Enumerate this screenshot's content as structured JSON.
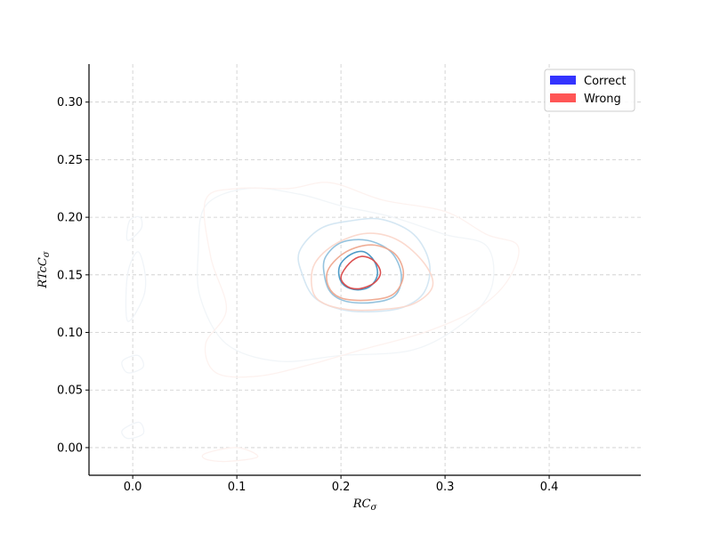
{
  "chart_data": {
    "type": "contour",
    "title": "",
    "xlabel": "RC",
    "xlabel_sub": "σ",
    "ylabel": "RTcC",
    "ylabel_sub": "σ",
    "xlim": [
      -0.042,
      0.488
    ],
    "ylim": [
      -0.024,
      0.333
    ],
    "xticks": [
      0.0,
      0.1,
      0.2,
      0.3,
      0.4
    ],
    "xtick_labels": [
      "0.0",
      "0.1",
      "0.2",
      "0.3",
      "0.4"
    ],
    "yticks": [
      0.0,
      0.05,
      0.1,
      0.15,
      0.2,
      0.25,
      0.3
    ],
    "ytick_labels": [
      "0.00",
      "0.05",
      "0.10",
      "0.15",
      "0.20",
      "0.25",
      "0.30"
    ],
    "grid": true,
    "legend_position": "top-right",
    "series": [
      {
        "name": "Correct",
        "legend_color": "#3333ff",
        "levels": [
          {
            "color": "#f0f4f8",
            "points": [
              [
                0.07,
                0.21
              ],
              [
                0.11,
                0.225
              ],
              [
                0.16,
                0.22
              ],
              [
                0.2,
                0.21
              ],
              [
                0.25,
                0.2
              ],
              [
                0.3,
                0.185
              ],
              [
                0.34,
                0.175
              ],
              [
                0.345,
                0.14
              ],
              [
                0.32,
                0.11
              ],
              [
                0.27,
                0.085
              ],
              [
                0.2,
                0.08
              ],
              [
                0.14,
                0.075
              ],
              [
                0.09,
                0.09
              ],
              [
                0.065,
                0.13
              ],
              [
                0.063,
                0.17
              ]
            ]
          },
          {
            "color": "#d3e6f2",
            "points": [
              [
                0.16,
                0.17
              ],
              [
                0.18,
                0.19
              ],
              [
                0.21,
                0.197
              ],
              [
                0.24,
                0.198
              ],
              [
                0.27,
                0.185
              ],
              [
                0.285,
                0.16
              ],
              [
                0.28,
                0.135
              ],
              [
                0.26,
                0.122
              ],
              [
                0.23,
                0.118
              ],
              [
                0.2,
                0.12
              ],
              [
                0.175,
                0.13
              ],
              [
                0.163,
                0.15
              ]
            ]
          },
          {
            "color": "#8fc0dc",
            "points": [
              [
                0.185,
                0.165
              ],
              [
                0.2,
                0.178
              ],
              [
                0.225,
                0.18
              ],
              [
                0.248,
                0.17
              ],
              [
                0.258,
                0.15
              ],
              [
                0.252,
                0.132
              ],
              [
                0.23,
                0.126
              ],
              [
                0.205,
                0.127
              ],
              [
                0.19,
                0.135
              ],
              [
                0.184,
                0.15
              ]
            ]
          },
          {
            "color": "#4596c4",
            "points": [
              [
                0.2,
                0.16
              ],
              [
                0.21,
                0.168
              ],
              [
                0.222,
                0.17
              ],
              [
                0.232,
                0.162
              ],
              [
                0.235,
                0.15
              ],
              [
                0.228,
                0.14
              ],
              [
                0.215,
                0.137
              ],
              [
                0.203,
                0.141
              ],
              [
                0.198,
                0.15
              ]
            ]
          }
        ]
      },
      {
        "name": "Wrong",
        "legend_color": "#ff5555",
        "levels": [
          {
            "color": "#fdf1ee",
            "points": [
              [
                0.07,
                0.215
              ],
              [
                0.1,
                0.225
              ],
              [
                0.15,
                0.225
              ],
              [
                0.19,
                0.23
              ],
              [
                0.24,
                0.215
              ],
              [
                0.3,
                0.205
              ],
              [
                0.34,
                0.185
              ],
              [
                0.37,
                0.175
              ],
              [
                0.36,
                0.145
              ],
              [
                0.33,
                0.12
              ],
              [
                0.28,
                0.1
              ],
              [
                0.22,
                0.085
              ],
              [
                0.17,
                0.072
              ],
              [
                0.12,
                0.062
              ],
              [
                0.08,
                0.065
              ],
              [
                0.07,
                0.09
              ],
              [
                0.09,
                0.12
              ],
              [
                0.075,
                0.165
              ]
            ]
          },
          {
            "color": "#fbd8cc",
            "points": [
              [
                0.175,
                0.16
              ],
              [
                0.195,
                0.177
              ],
              [
                0.225,
                0.186
              ],
              [
                0.255,
                0.18
              ],
              [
                0.28,
                0.16
              ],
              [
                0.288,
                0.14
              ],
              [
                0.27,
                0.125
              ],
              [
                0.24,
                0.12
              ],
              [
                0.205,
                0.12
              ],
              [
                0.18,
                0.127
              ],
              [
                0.172,
                0.14
              ]
            ]
          },
          {
            "color": "#eea990",
            "points": [
              [
                0.188,
                0.155
              ],
              [
                0.205,
                0.17
              ],
              [
                0.23,
                0.176
              ],
              [
                0.252,
                0.168
              ],
              [
                0.26,
                0.15
              ],
              [
                0.25,
                0.133
              ],
              [
                0.225,
                0.128
              ],
              [
                0.2,
                0.13
              ],
              [
                0.188,
                0.14
              ]
            ]
          },
          {
            "color": "#d94848",
            "points": [
              [
                0.2,
                0.148
              ],
              [
                0.208,
                0.16
              ],
              [
                0.22,
                0.166
              ],
              [
                0.232,
                0.162
              ],
              [
                0.238,
                0.152
              ],
              [
                0.232,
                0.143
              ],
              [
                0.218,
                0.138
              ],
              [
                0.206,
                0.14
              ]
            ]
          }
        ]
      }
    ],
    "outliers": [
      {
        "series": "Correct",
        "color": "#f0f4f8",
        "points": [
          [
            -0.005,
            0.11
          ],
          [
            0.01,
            0.13
          ],
          [
            0.012,
            0.15
          ],
          [
            0.005,
            0.17
          ],
          [
            -0.005,
            0.15
          ]
        ]
      },
      {
        "series": "Correct",
        "color": "#f0f4f8",
        "points": [
          [
            -0.005,
            0.18
          ],
          [
            0.008,
            0.19
          ],
          [
            0.007,
            0.2
          ],
          [
            -0.003,
            0.197
          ]
        ]
      },
      {
        "series": "Correct",
        "color": "#f0f4f8",
        "points": [
          [
            -0.01,
            0.075
          ],
          [
            0.005,
            0.08
          ],
          [
            0.01,
            0.07
          ],
          [
            -0.005,
            0.065
          ]
        ]
      },
      {
        "series": "Correct",
        "color": "#f0f4f8",
        "points": [
          [
            -0.01,
            0.015
          ],
          [
            0.006,
            0.022
          ],
          [
            0.01,
            0.012
          ],
          [
            -0.005,
            0.008
          ]
        ]
      },
      {
        "series": "Wrong",
        "color": "#fdf1ee",
        "points": [
          [
            0.07,
            -0.005
          ],
          [
            0.1,
            0.0
          ],
          [
            0.12,
            -0.008
          ],
          [
            0.09,
            -0.012
          ],
          [
            0.07,
            -0.01
          ]
        ]
      }
    ]
  }
}
